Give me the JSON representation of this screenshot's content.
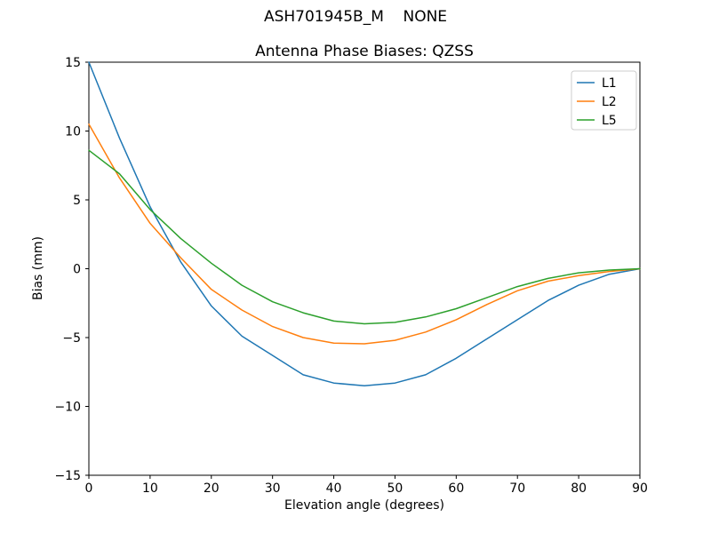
{
  "figure_title": "ASH701945B_M    NONE",
  "chart_data": {
    "type": "line",
    "title": "Antenna Phase Biases: QZSS",
    "xlabel": "Elevation angle (degrees)",
    "ylabel": "Bias (mm)",
    "xlim": [
      0,
      90
    ],
    "ylim": [
      -15,
      15
    ],
    "xticks": [
      0,
      10,
      20,
      30,
      40,
      50,
      60,
      70,
      80,
      90
    ],
    "yticks": [
      -15,
      -10,
      -5,
      0,
      5,
      10,
      15
    ],
    "grid": false,
    "legend_position": "upper right",
    "x": [
      0,
      5,
      10,
      15,
      20,
      25,
      30,
      35,
      40,
      45,
      50,
      55,
      60,
      65,
      70,
      75,
      80,
      85,
      90
    ],
    "series": [
      {
        "name": "L1",
        "color": "#1f77b4",
        "values": [
          15.0,
          9.5,
          4.5,
          0.5,
          -2.7,
          -4.9,
          -6.3,
          -7.7,
          -8.3,
          -8.5,
          -8.3,
          -7.7,
          -6.5,
          -5.1,
          -3.7,
          -2.3,
          -1.2,
          -0.4,
          0.0
        ]
      },
      {
        "name": "L2",
        "color": "#ff7f0e",
        "values": [
          10.5,
          6.6,
          3.3,
          0.8,
          -1.5,
          -3.0,
          -4.2,
          -5.0,
          -5.4,
          -5.45,
          -5.2,
          -4.6,
          -3.7,
          -2.6,
          -1.6,
          -0.9,
          -0.5,
          -0.2,
          0.0
        ]
      },
      {
        "name": "L5",
        "color": "#2ca02c",
        "values": [
          8.6,
          6.9,
          4.3,
          2.2,
          0.4,
          -1.2,
          -2.4,
          -3.2,
          -3.8,
          -4.0,
          -3.9,
          -3.5,
          -2.9,
          -2.1,
          -1.3,
          -0.7,
          -0.3,
          -0.1,
          0.0
        ]
      }
    ]
  }
}
